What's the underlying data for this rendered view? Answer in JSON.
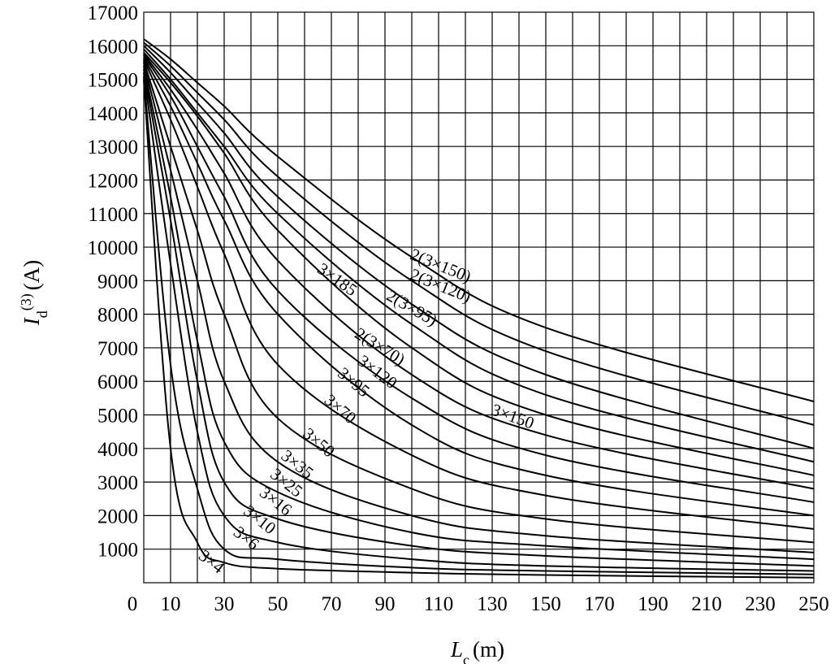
{
  "chart_data": {
    "type": "line",
    "title": "",
    "xlabel": {
      "main": "L",
      "sub": "c",
      "unit": "(m)"
    },
    "ylabel": {
      "main": "I",
      "sub": "d",
      "sup": "(3)",
      "unit": "(A)"
    },
    "xlim": [
      0,
      250
    ],
    "ylim": [
      0,
      17000
    ],
    "grid": true,
    "x_ticks": [
      "0",
      "10",
      "30",
      "50",
      "70",
      "90",
      "110",
      "130",
      "150",
      "170",
      "190",
      "210",
      "230",
      "250"
    ],
    "x_tick_values": [
      0,
      10,
      30,
      50,
      70,
      90,
      110,
      130,
      150,
      170,
      190,
      210,
      230,
      250
    ],
    "y_ticks": [
      "1000",
      "2000",
      "3000",
      "4000",
      "5000",
      "6000",
      "7000",
      "8000",
      "9000",
      "10000",
      "11000",
      "12000",
      "13000",
      "14000",
      "15000",
      "16000",
      "17000"
    ],
    "y_tick_values": [
      1000,
      2000,
      3000,
      4000,
      5000,
      6000,
      7000,
      8000,
      9000,
      10000,
      11000,
      12000,
      13000,
      14000,
      15000,
      16000,
      17000
    ],
    "series": [
      {
        "name": "3×4",
        "x": [
          0,
          10,
          20,
          30,
          50,
          100,
          150,
          250
        ],
        "y": [
          15000,
          4000,
          1200,
          600,
          420,
          300,
          230,
          150
        ]
      },
      {
        "name": "3×6",
        "x": [
          0,
          10,
          20,
          30,
          50,
          100,
          150,
          250
        ],
        "y": [
          15100,
          6500,
          2800,
          1000,
          700,
          450,
          350,
          250
        ]
      },
      {
        "name": "3×10",
        "x": [
          0,
          10,
          20,
          30,
          50,
          100,
          150,
          250
        ],
        "y": [
          15200,
          9500,
          4500,
          2000,
          1200,
          700,
          500,
          350
        ]
      },
      {
        "name": "3×16",
        "x": [
          0,
          10,
          20,
          30,
          50,
          100,
          150,
          250
        ],
        "y": [
          15300,
          10800,
          6000,
          3000,
          1900,
          1100,
          800,
          500
        ]
      },
      {
        "name": "3×25",
        "x": [
          0,
          10,
          20,
          30,
          50,
          100,
          150,
          250
        ],
        "y": [
          15400,
          11500,
          7200,
          4200,
          2700,
          1500,
          1100,
          700
        ]
      },
      {
        "name": "3×35",
        "x": [
          0,
          10,
          20,
          30,
          50,
          100,
          150,
          250
        ],
        "y": [
          15500,
          12300,
          9000,
          6000,
          3600,
          2000,
          1400,
          900
        ]
      },
      {
        "name": "3×50",
        "x": [
          0,
          10,
          20,
          30,
          50,
          100,
          150,
          250
        ],
        "y": [
          15550,
          13000,
          10500,
          8000,
          4900,
          2800,
          1900,
          1200
        ]
      },
      {
        "name": "3×70",
        "x": [
          0,
          10,
          20,
          30,
          50,
          100,
          150,
          250
        ],
        "y": [
          15600,
          13800,
          11800,
          9800,
          6500,
          3800,
          2600,
          1600
        ]
      },
      {
        "name": "3×95",
        "x": [
          0,
          10,
          20,
          30,
          50,
          100,
          150,
          250
        ],
        "y": [
          15650,
          14200,
          12500,
          10800,
          8000,
          4700,
          3200,
          2000
        ]
      },
      {
        "name": "3×120",
        "x": [
          0,
          10,
          20,
          30,
          50,
          100,
          150,
          250
        ],
        "y": [
          15700,
          14500,
          13000,
          11500,
          8700,
          5500,
          3800,
          2400
        ]
      },
      {
        "name": "3×150",
        "x": [
          0,
          10,
          20,
          30,
          50,
          100,
          150,
          250
        ],
        "y": [
          15750,
          14700,
          13500,
          12200,
          9600,
          6200,
          4400,
          2800
        ]
      },
      {
        "name": "3×185",
        "x": [
          0,
          10,
          20,
          30,
          50,
          100,
          150,
          250
        ],
        "y": [
          15800,
          14900,
          13900,
          12800,
          10500,
          7000,
          5000,
          3200
        ]
      },
      {
        "name": "2(3×70)",
        "x": [
          0,
          10,
          20,
          30,
          50,
          100,
          150,
          250
        ],
        "y": [
          15900,
          15000,
          14000,
          13000,
          11000,
          7700,
          5600,
          3600
        ]
      },
      {
        "name": "2(3×95)",
        "x": [
          0,
          10,
          20,
          30,
          50,
          100,
          150,
          250
        ],
        "y": [
          16000,
          15200,
          14300,
          13400,
          11500,
          8300,
          6200,
          4000
        ]
      },
      {
        "name": "2(3×120)",
        "x": [
          0,
          10,
          20,
          30,
          50,
          100,
          150,
          250
        ],
        "y": [
          16100,
          15400,
          14600,
          13800,
          12100,
          9000,
          6900,
          4700
        ]
      },
      {
        "name": "2(3×150)",
        "x": [
          0,
          10,
          20,
          30,
          50,
          100,
          150,
          250
        ],
        "y": [
          16200,
          15600,
          14900,
          14200,
          12700,
          9700,
          7600,
          5400
        ]
      }
    ],
    "curve_labels": [
      {
        "text": "2(3×150)",
        "x": 110,
        "y": 9300,
        "angle": 22
      },
      {
        "text": "2(3×120)",
        "x": 110,
        "y": 8700,
        "angle": 22
      },
      {
        "text": "2(3×95)",
        "x": 99,
        "y": 8050,
        "angle": 30
      },
      {
        "text": "2(3×70)",
        "x": 87,
        "y": 6900,
        "angle": 32
      },
      {
        "text": "3×185",
        "x": 71,
        "y": 8900,
        "angle": 35
      },
      {
        "text": "3×120",
        "x": 86,
        "y": 6150,
        "angle": 37
      },
      {
        "text": "3×95",
        "x": 77,
        "y": 5850,
        "angle": 40
      },
      {
        "text": "3×70",
        "x": 72,
        "y": 5050,
        "angle": 40
      },
      {
        "text": "3×50",
        "x": 64,
        "y": 4050,
        "angle": 40
      },
      {
        "text": "3×35",
        "x": 56,
        "y": 3400,
        "angle": 38
      },
      {
        "text": "3×25",
        "x": 52,
        "y": 2850,
        "angle": 38
      },
      {
        "text": "3×16",
        "x": 48,
        "y": 2300,
        "angle": 38
      },
      {
        "text": "3×10",
        "x": 42,
        "y": 1750,
        "angle": 38
      },
      {
        "text": "3×6",
        "x": 37,
        "y": 1200,
        "angle": 38
      },
      {
        "text": "3×4",
        "x": 24,
        "y": 500,
        "angle": 38
      },
      {
        "text": "3×150",
        "x": 137,
        "y": 4800,
        "angle": 20
      }
    ]
  }
}
